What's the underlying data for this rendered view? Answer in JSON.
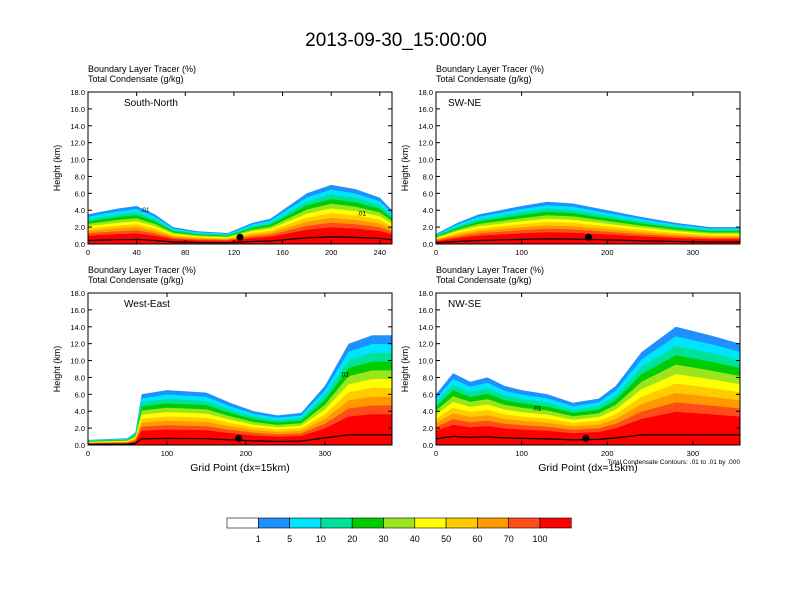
{
  "title": "2013-09-30_15:00:00",
  "chart_data": [
    {
      "type": "heatmap",
      "panel_label": "South-North",
      "title_lines": [
        "Boundary Layer Tracer   (%)",
        "Total Condensate   (g/kg)"
      ],
      "ylabel": "Height (km)",
      "xlabel": "",
      "xlim": [
        0,
        250
      ],
      "ylim": [
        0,
        18
      ],
      "x_ticks": [
        0,
        40,
        80,
        120,
        160,
        200,
        240
      ],
      "y_ticks": [
        "0.0",
        "2.0",
        "4.0",
        "6.0",
        "8.0",
        "10.0",
        "12.0",
        "14.0",
        "16.0",
        "18.0"
      ],
      "marker_x": 125,
      "contour_labels": [
        {
          "x": 47,
          "y": 3.8,
          "text": ".01"
        },
        {
          "x": 225,
          "y": 3.4,
          "text": ".01"
        }
      ],
      "tracer_tops": [
        [
          0,
          3.5
        ],
        [
          10,
          3.8
        ],
        [
          25,
          4.2
        ],
        [
          40,
          4.5
        ],
        [
          55,
          3.5
        ],
        [
          70,
          2.0
        ],
        [
          90,
          1.5
        ],
        [
          115,
          1.3
        ],
        [
          135,
          2.5
        ],
        [
          150,
          3.0
        ],
        [
          165,
          4.5
        ],
        [
          180,
          6.0
        ],
        [
          200,
          7.0
        ],
        [
          220,
          6.5
        ],
        [
          240,
          5.5
        ],
        [
          250,
          4.0
        ]
      ]
    },
    {
      "type": "heatmap",
      "panel_label": "SW-NE",
      "title_lines": [
        "Boundary Layer Tracer   (%)",
        "Total Condensate   (g/kg)"
      ],
      "ylabel": "Height (km)",
      "xlabel": "",
      "xlim": [
        0,
        355
      ],
      "ylim": [
        0,
        18
      ],
      "x_ticks": [
        0,
        100,
        200,
        300
      ],
      "y_ticks": [
        "0.0",
        "2.0",
        "4.0",
        "6.0",
        "8.0",
        "10.0",
        "12.0",
        "14.0",
        "16.0",
        "18.0"
      ],
      "marker_x": 178,
      "contour_labels": [],
      "tracer_tops": [
        [
          0,
          1.2
        ],
        [
          25,
          2.5
        ],
        [
          50,
          3.5
        ],
        [
          75,
          4.0
        ],
        [
          100,
          4.5
        ],
        [
          130,
          5.0
        ],
        [
          160,
          4.8
        ],
        [
          200,
          4.0
        ],
        [
          240,
          3.2
        ],
        [
          280,
          2.5
        ],
        [
          320,
          2.0
        ],
        [
          355,
          2.0
        ]
      ]
    },
    {
      "type": "heatmap",
      "panel_label": "West-East",
      "title_lines": [
        "Boundary Layer Tracer   (%)",
        "Total Condensate   (g/kg)"
      ],
      "ylabel": "Height (km)",
      "xlabel": "Grid Point (dx=15km)",
      "xlim": [
        0,
        385
      ],
      "ylim": [
        0,
        18
      ],
      "x_ticks": [
        0,
        100,
        200,
        300
      ],
      "y_ticks": [
        "0.0",
        "2.0",
        "4.0",
        "6.0",
        "8.0",
        "10.0",
        "12.0",
        "14.0",
        "16.0",
        "18.0"
      ],
      "marker_x": 191,
      "contour_labels": [
        {
          "x": 325,
          "y": 8.1,
          "text": ".01"
        }
      ],
      "tracer_tops": [
        [
          0,
          0.6
        ],
        [
          50,
          0.8
        ],
        [
          60,
          1.5
        ],
        [
          68,
          6.0
        ],
        [
          100,
          6.5
        ],
        [
          150,
          6.2
        ],
        [
          180,
          5.0
        ],
        [
          210,
          4.0
        ],
        [
          240,
          3.5
        ],
        [
          270,
          3.8
        ],
        [
          300,
          7.0
        ],
        [
          330,
          12.0
        ],
        [
          360,
          13.0
        ],
        [
          385,
          13.0
        ]
      ]
    },
    {
      "type": "heatmap",
      "panel_label": "NW-SE",
      "title_lines": [
        "Boundary Layer Tracer   (%)",
        "Total Condensate   (g/kg)"
      ],
      "ylabel": "Height (km)",
      "xlabel": "Grid Point (dx=15km)",
      "xlim": [
        0,
        355
      ],
      "ylim": [
        0,
        18
      ],
      "x_ticks": [
        0,
        100,
        200,
        300
      ],
      "y_ticks": [
        "0.0",
        "2.0",
        "4.0",
        "6.0",
        "8.0",
        "10.0",
        "12.0",
        "14.0",
        "16.0",
        "18.0"
      ],
      "marker_x": 175,
      "contour_labels": [
        {
          "x": 118,
          "y": 4.1,
          "text": ".01"
        }
      ],
      "contour_note": "Total Condensate Contours: .01 to .01 by .000",
      "tracer_tops": [
        [
          0,
          6.0
        ],
        [
          20,
          8.5
        ],
        [
          40,
          7.5
        ],
        [
          60,
          8.0
        ],
        [
          80,
          7.0
        ],
        [
          100,
          6.5
        ],
        [
          130,
          6.0
        ],
        [
          160,
          5.0
        ],
        [
          190,
          5.5
        ],
        [
          210,
          7.0
        ],
        [
          240,
          11.0
        ],
        [
          280,
          14.0
        ],
        [
          320,
          13.0
        ],
        [
          355,
          12.0
        ]
      ]
    }
  ],
  "colorbar": {
    "labels": [
      "1",
      "5",
      "10",
      "20",
      "30",
      "40",
      "50",
      "60",
      "70",
      "100"
    ],
    "colors": [
      "#ffffff",
      "#1e90ff",
      "#00e5ff",
      "#00e29a",
      "#00cc00",
      "#9ae51e",
      "#ffff00",
      "#ffcc00",
      "#ff9900",
      "#ff4d1a",
      "#ff0000"
    ]
  }
}
